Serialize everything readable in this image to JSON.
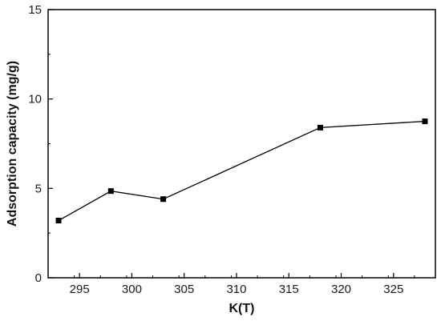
{
  "chart_data": {
    "type": "line",
    "title": "",
    "xlabel": "K(T)",
    "ylabel": "Adsorption capacity (mg/g)",
    "xlim": [
      292,
      329
    ],
    "ylim": [
      0,
      15
    ],
    "xticks": [
      295,
      300,
      305,
      310,
      315,
      320,
      325
    ],
    "yticks": [
      0,
      5,
      10,
      15
    ],
    "grid": false,
    "legend": "none",
    "series": [
      {
        "x": [
          293,
          298,
          303,
          318,
          328
        ],
        "y": [
          3.2,
          4.85,
          4.4,
          8.4,
          8.75
        ],
        "marker": "square",
        "color": "#000000"
      }
    ]
  }
}
